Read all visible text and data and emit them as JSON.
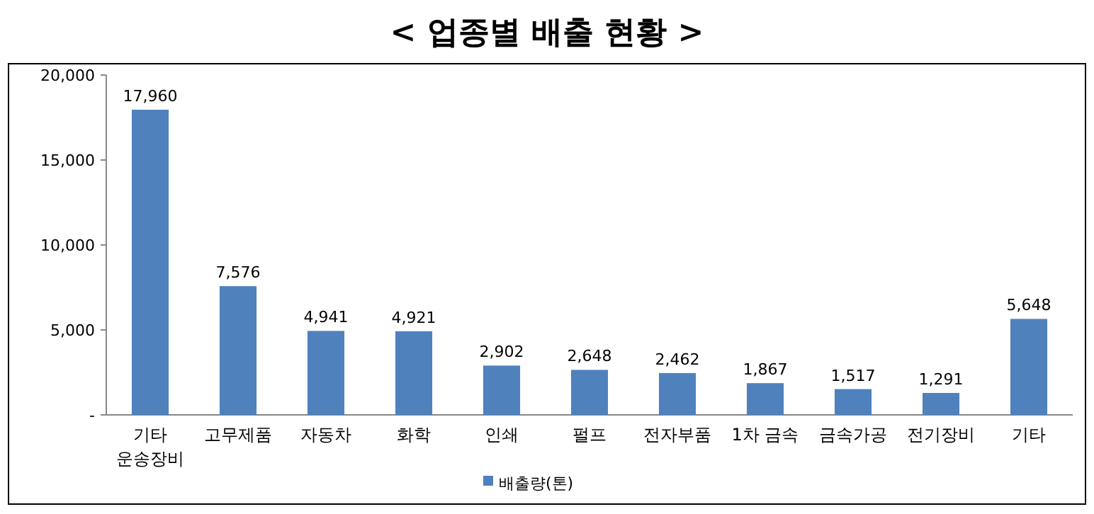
{
  "chart_data": {
    "type": "bar",
    "title": "< 업종별 배출 현황 >",
    "categories": [
      "기타 운송장비",
      "고무제품",
      "자동차",
      "화학",
      "인쇄",
      "펄프",
      "전자부품",
      "1차 금속",
      "금속가공",
      "전기장비",
      "기타"
    ],
    "series": [
      {
        "name": "배출량(톤)",
        "color": "#4f81bd",
        "values": [
          17960,
          7576,
          4941,
          4921,
          2902,
          2648,
          2462,
          1867,
          1517,
          1291,
          5648
        ]
      }
    ],
    "ylim": [
      0,
      20000
    ],
    "yticks": [
      {
        "value": 0,
        "label": "-"
      },
      {
        "value": 5000,
        "label": "5,000"
      },
      {
        "value": 10000,
        "label": "10,000"
      },
      {
        "value": 15000,
        "label": "15,000"
      },
      {
        "value": 20000,
        "label": "20,000"
      }
    ],
    "value_labels": [
      "17,960",
      "7,576",
      "4,941",
      "4,921",
      "2,902",
      "2,648",
      "2,462",
      "1,867",
      "1,517",
      "1,291",
      "5,648"
    ],
    "grid": false,
    "legend": "bottom"
  }
}
